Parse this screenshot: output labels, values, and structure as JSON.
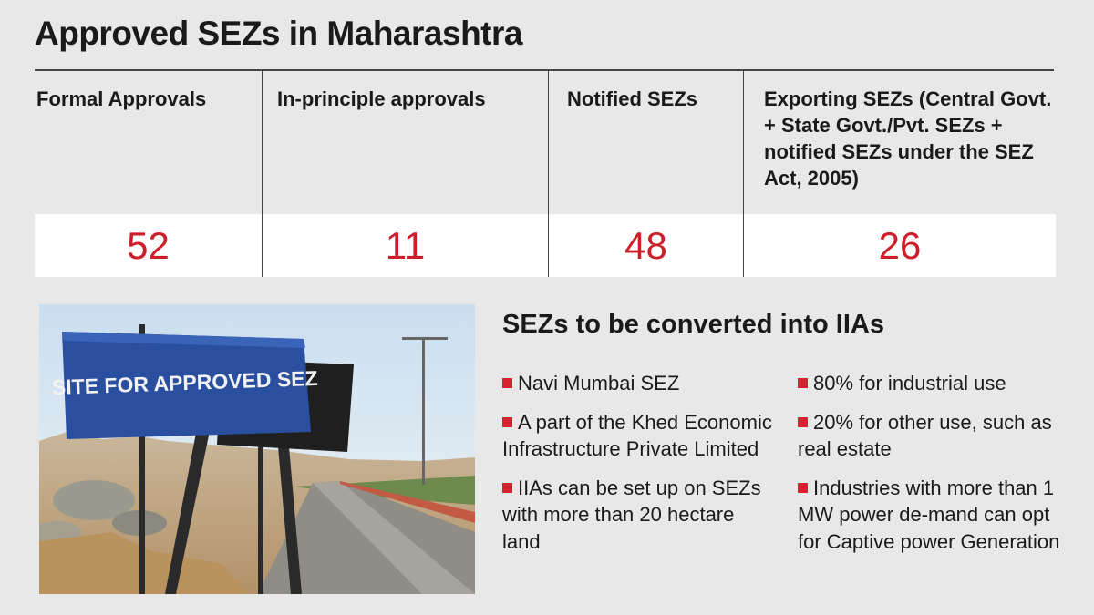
{
  "title": "Approved SEZs in Maharashtra",
  "stats": [
    {
      "label": "Formal Approvals",
      "value": "52"
    },
    {
      "label": "In-principle approvals",
      "value": "11"
    },
    {
      "label": "Notified SEZs",
      "value": "48"
    },
    {
      "label": "Exporting SEZs (Central Govt. + State Govt./Pvt. SEZs + notified SEZs under the SEZ Act, 2005)",
      "value": "26"
    }
  ],
  "photo": {
    "sign_text": "SITE FOR APPROVED SEZ"
  },
  "section": {
    "title": "SEZs to be converted into IIAs",
    "left_items": [
      "Navi Mumbai SEZ",
      "A part of the Khed Economic Infrastructure Private Limited",
      "IIAs can be set up on SEZs with more than 20 hectare land"
    ],
    "right_items": [
      "80% for industrial use",
      "20% for other use, such as real estate",
      "Industries with more than 1 MW power de-mand can opt for Captive power Generation"
    ]
  },
  "colors": {
    "accent_red": "#cc1f2a",
    "background": "#e8e8e8",
    "sign_blue": "#2a4f9e"
  }
}
